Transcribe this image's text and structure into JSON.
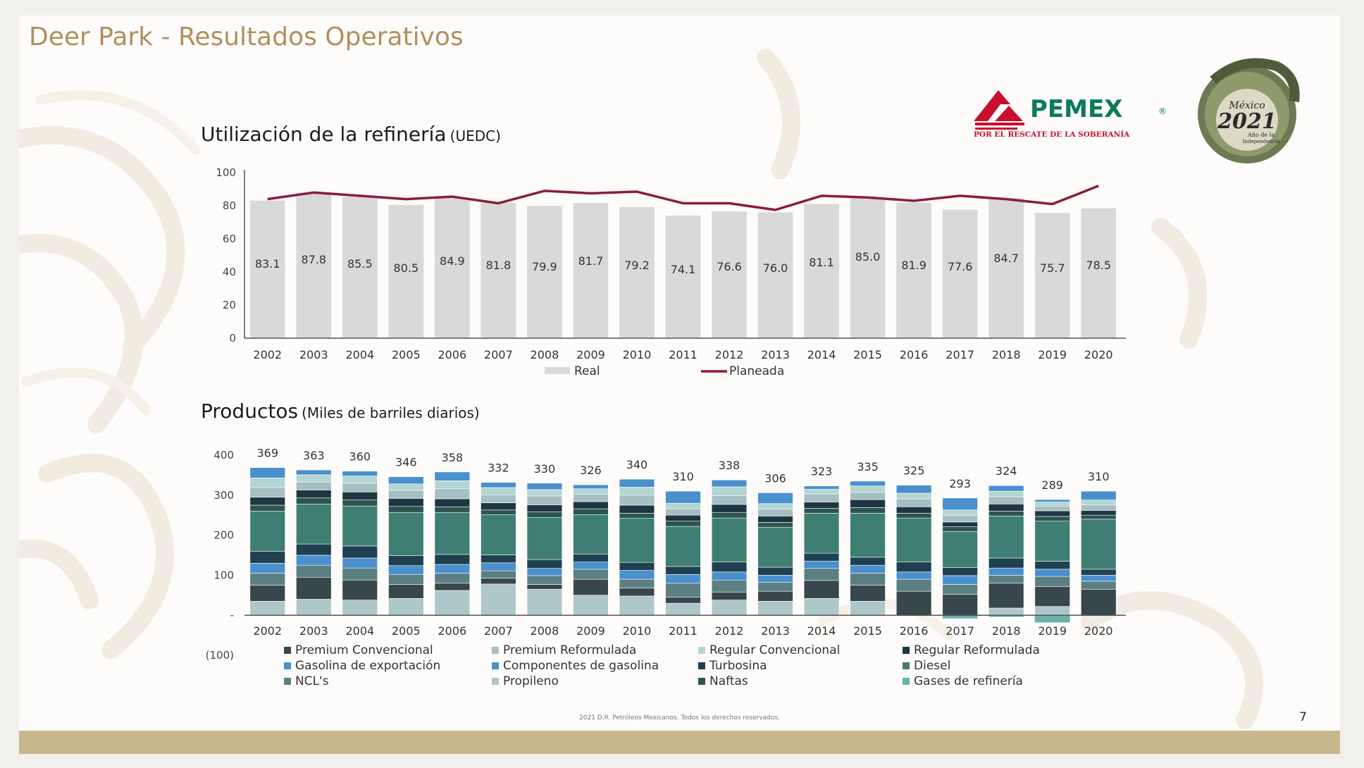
{
  "slide": {
    "title": "Deer Park - Resultados Operativos",
    "footer": "2021 D.R. Petróleos Mexicanos. Todos los derechos reservados.",
    "page_number": "7"
  },
  "logos": {
    "pemex_name": "PEMEX",
    "pemex_registered": "®",
    "pemex_tagline": "POR EL RESCATE DE LA SOBERANÍA",
    "mexico_text": "México",
    "mexico_year": "2021",
    "mexico_caption_1": "Año de la",
    "mexico_caption_2": "Independencia"
  },
  "sections": {
    "utilization": {
      "title": "Utilización de la refinería",
      "unit": "(UEDC)"
    },
    "products": {
      "title": "Productos",
      "unit": "(Miles de barriles diarios)"
    }
  },
  "colors": {
    "real_bar": "#d9d9d9",
    "planned_line": "#8b1d3b",
    "title_gold": "#b38e5d",
    "band": "#c8b68c"
  },
  "chart_data": [
    {
      "type": "bar",
      "title": "Utilización de la refinería (UEDC)",
      "categories": [
        "2002",
        "2003",
        "2004",
        "2005",
        "2006",
        "2007",
        "2008",
        "2009",
        "2010",
        "2011",
        "2012",
        "2013",
        "2014",
        "2015",
        "2016",
        "2017",
        "2018",
        "2019",
        "2020"
      ],
      "ylim": [
        0,
        100
      ],
      "yticks": [
        0,
        20,
        40,
        60,
        80,
        100
      ],
      "legend_position": "bottom",
      "series": [
        {
          "name": "Real",
          "kind": "bar",
          "color": "#d9d9d9",
          "values": [
            83.1,
            87.8,
            85.5,
            80.5,
            84.9,
            81.8,
            79.9,
            81.7,
            79.2,
            74.1,
            76.6,
            76.0,
            81.1,
            85.0,
            81.9,
            77.6,
            84.7,
            75.7,
            78.5
          ],
          "labels": [
            "83.1",
            "87.8",
            "85.5",
            "80.5",
            "84.9",
            "81.8",
            "79.9",
            "81.7",
            "79.2",
            "74.1",
            "76.6",
            "76.0",
            "81.1",
            "85.0",
            "81.9",
            "77.6",
            "84.7",
            "75.7",
            "78.5"
          ]
        },
        {
          "name": "Planeada",
          "kind": "line",
          "color": "#8b1d3b",
          "values": [
            84.0,
            88.0,
            86.0,
            84.0,
            85.5,
            81.5,
            89.0,
            87.5,
            88.5,
            81.5,
            81.5,
            77.5,
            86.0,
            85.0,
            83.0,
            86.0,
            84.0,
            81.0,
            92.0
          ]
        }
      ]
    },
    {
      "type": "bar",
      "stacked": true,
      "title": "Productos (Miles de barriles diarios)",
      "categories": [
        "2002",
        "2003",
        "2004",
        "2005",
        "2006",
        "2007",
        "2008",
        "2009",
        "2010",
        "2011",
        "2012",
        "2013",
        "2014",
        "2015",
        "2016",
        "2017",
        "2018",
        "2019",
        "2020"
      ],
      "ylim": [
        -100,
        400
      ],
      "yticks": [
        -100,
        0,
        100,
        200,
        300,
        400
      ],
      "ytick_labels": [
        "(100)",
        "-",
        "100",
        "200",
        "300",
        "400"
      ],
      "totals": [
        369,
        363,
        360,
        346,
        358,
        332,
        330,
        326,
        340,
        310,
        338,
        306,
        323,
        335,
        325,
        293,
        324,
        289,
        310
      ],
      "total_labels": [
        "369",
        "363",
        "360",
        "346",
        "358",
        "332",
        "330",
        "326",
        "340",
        "310",
        "338",
        "306",
        "323",
        "335",
        "325",
        "293",
        "324",
        "289",
        "310"
      ],
      "legend_position": "bottom",
      "series": [
        {
          "name": "Propileno",
          "color": "#aec7c8",
          "values": [
            35,
            40,
            38,
            42,
            62,
            78,
            65,
            50,
            48,
            30,
            38,
            35,
            42,
            35,
            0,
            0,
            18,
            22,
            0
          ]
        },
        {
          "name": "Premium Convencional",
          "color": "#38474b",
          "values": [
            40,
            55,
            50,
            35,
            18,
            15,
            12,
            40,
            20,
            15,
            20,
            25,
            45,
            40,
            60,
            52,
            62,
            50,
            65
          ]
        },
        {
          "name": "NCL's",
          "color": "#5b7f82",
          "values": [
            30,
            30,
            30,
            25,
            25,
            18,
            22,
            25,
            22,
            35,
            30,
            22,
            30,
            30,
            30,
            25,
            20,
            25,
            20
          ]
        },
        {
          "name": "Componentes de gasolina",
          "color": "#4a8fce",
          "values": [
            25,
            25,
            25,
            22,
            22,
            20,
            18,
            18,
            22,
            22,
            20,
            18,
            18,
            20,
            18,
            22,
            18,
            18,
            15
          ]
        },
        {
          "name": "Turbosina",
          "color": "#1f4050",
          "values": [
            30,
            28,
            30,
            25,
            25,
            20,
            22,
            20,
            20,
            20,
            25,
            20,
            20,
            20,
            25,
            20,
            25,
            20,
            15
          ]
        },
        {
          "name": "Diesel",
          "color": "#3f7e73",
          "values": [
            100,
            100,
            100,
            108,
            105,
            100,
            105,
            98,
            110,
            100,
            110,
            100,
            100,
            110,
            110,
            90,
            105,
            100,
            125
          ]
        },
        {
          "name": "Naftas",
          "color": "#2c5550",
          "values": [
            15,
            15,
            15,
            15,
            14,
            12,
            14,
            15,
            13,
            13,
            14,
            12,
            12,
            14,
            12,
            12,
            12,
            12,
            10
          ]
        },
        {
          "name": "Regular Reformulada",
          "color": "#1e3643",
          "values": [
            20,
            20,
            20,
            20,
            20,
            18,
            18,
            18,
            20,
            15,
            20,
            16,
            16,
            20,
            16,
            12,
            18,
            14,
            12
          ]
        },
        {
          "name": "Premium  Reformulada",
          "color": "#a5bfc2",
          "values": [
            24,
            20,
            22,
            20,
            25,
            20,
            22,
            18,
            25,
            16,
            22,
            17,
            20,
            18,
            20,
            16,
            18,
            12,
            14
          ]
        },
        {
          "name": "Regular Convencional",
          "color": "#b3d6d2",
          "values": [
            24,
            18,
            18,
            16,
            20,
            18,
            16,
            14,
            20,
            14,
            22,
            14,
            12,
            16,
            14,
            14,
            14,
            10,
            12
          ]
        },
        {
          "name": "Gasolina de exportación",
          "color": "#4a8fce",
          "values": [
            26,
            12,
            12,
            18,
            22,
            13,
            16,
            10,
            20,
            30,
            17,
            27,
            8,
            12,
            20,
            30,
            14,
            6,
            22
          ]
        },
        {
          "name": "Gases de refinería",
          "color": "#66b3ad",
          "values": [
            0,
            0,
            0,
            0,
            0,
            0,
            0,
            0,
            0,
            0,
            0,
            0,
            0,
            0,
            0,
            -8,
            -4,
            -18,
            0
          ]
        }
      ],
      "legend_order": [
        "Premium Convencional",
        "Premium  Reformulada",
        "Regular Convencional",
        "Regular Reformulada",
        "Gasolina de exportación",
        "Componentes de gasolina",
        "Turbosina",
        "Diesel",
        "NCL's",
        "Propileno",
        "Naftas",
        "Gases de refinería"
      ]
    }
  ]
}
